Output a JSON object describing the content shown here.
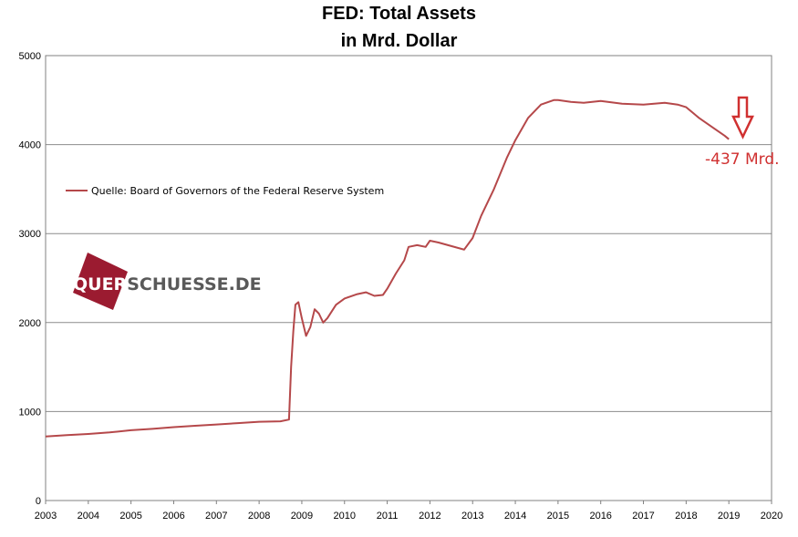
{
  "title_line1": "FED: Total Assets",
  "title_line2": "in Mrd. Dollar",
  "logo": {
    "part1": "QUER",
    "part2": "SCHUESSE.DE",
    "color_block": "#9b1b30",
    "color_text": "#595959"
  },
  "annotation": {
    "text": "-437 Mrd.",
    "color": "#d03030"
  },
  "chart_data": {
    "type": "line",
    "title": "FED: Total Assets in Mrd. Dollar",
    "xlabel": "",
    "ylabel": "",
    "xlim": [
      2003,
      2020
    ],
    "ylim": [
      0,
      5000
    ],
    "x_ticks": [
      "2003",
      "2004",
      "2005",
      "2006",
      "2007",
      "2008",
      "2009",
      "2010",
      "2011",
      "2012",
      "2013",
      "2014",
      "2015",
      "2016",
      "2017",
      "2018",
      "2019",
      "2020"
    ],
    "y_ticks": [
      "0",
      "1000",
      "2000",
      "3000",
      "4000",
      "5000"
    ],
    "grid": "horizontal",
    "legend_position": "upper-left",
    "line_color": "#b5484a",
    "series": [
      {
        "name": "Quelle: Board of Governors of the Federal Reserve System",
        "points": [
          [
            2003.0,
            720
          ],
          [
            2003.5,
            735
          ],
          [
            2004.0,
            748
          ],
          [
            2004.5,
            765
          ],
          [
            2005.0,
            790
          ],
          [
            2005.5,
            805
          ],
          [
            2006.0,
            825
          ],
          [
            2006.5,
            840
          ],
          [
            2007.0,
            855
          ],
          [
            2007.5,
            870
          ],
          [
            2008.0,
            885
          ],
          [
            2008.5,
            890
          ],
          [
            2008.7,
            910
          ],
          [
            2008.75,
            1500
          ],
          [
            2008.8,
            1900
          ],
          [
            2008.85,
            2200
          ],
          [
            2008.92,
            2230
          ],
          [
            2009.0,
            2050
          ],
          [
            2009.1,
            1850
          ],
          [
            2009.2,
            1950
          ],
          [
            2009.3,
            2150
          ],
          [
            2009.4,
            2100
          ],
          [
            2009.5,
            2000
          ],
          [
            2009.6,
            2050
          ],
          [
            2009.8,
            2200
          ],
          [
            2010.0,
            2270
          ],
          [
            2010.3,
            2320
          ],
          [
            2010.5,
            2340
          ],
          [
            2010.7,
            2300
          ],
          [
            2010.9,
            2310
          ],
          [
            2011.0,
            2380
          ],
          [
            2011.2,
            2550
          ],
          [
            2011.4,
            2700
          ],
          [
            2011.5,
            2850
          ],
          [
            2011.7,
            2870
          ],
          [
            2011.9,
            2850
          ],
          [
            2012.0,
            2920
          ],
          [
            2012.2,
            2900
          ],
          [
            2012.5,
            2860
          ],
          [
            2012.8,
            2820
          ],
          [
            2013.0,
            2950
          ],
          [
            2013.2,
            3200
          ],
          [
            2013.5,
            3500
          ],
          [
            2013.8,
            3850
          ],
          [
            2014.0,
            4050
          ],
          [
            2014.3,
            4300
          ],
          [
            2014.6,
            4450
          ],
          [
            2014.9,
            4500
          ],
          [
            2015.0,
            4500
          ],
          [
            2015.3,
            4480
          ],
          [
            2015.6,
            4470
          ],
          [
            2016.0,
            4490
          ],
          [
            2016.5,
            4460
          ],
          [
            2017.0,
            4450
          ],
          [
            2017.5,
            4470
          ],
          [
            2017.8,
            4450
          ],
          [
            2018.0,
            4420
          ],
          [
            2018.3,
            4300
          ],
          [
            2018.6,
            4200
          ],
          [
            2018.9,
            4100
          ],
          [
            2019.0,
            4060
          ]
        ]
      }
    ]
  }
}
